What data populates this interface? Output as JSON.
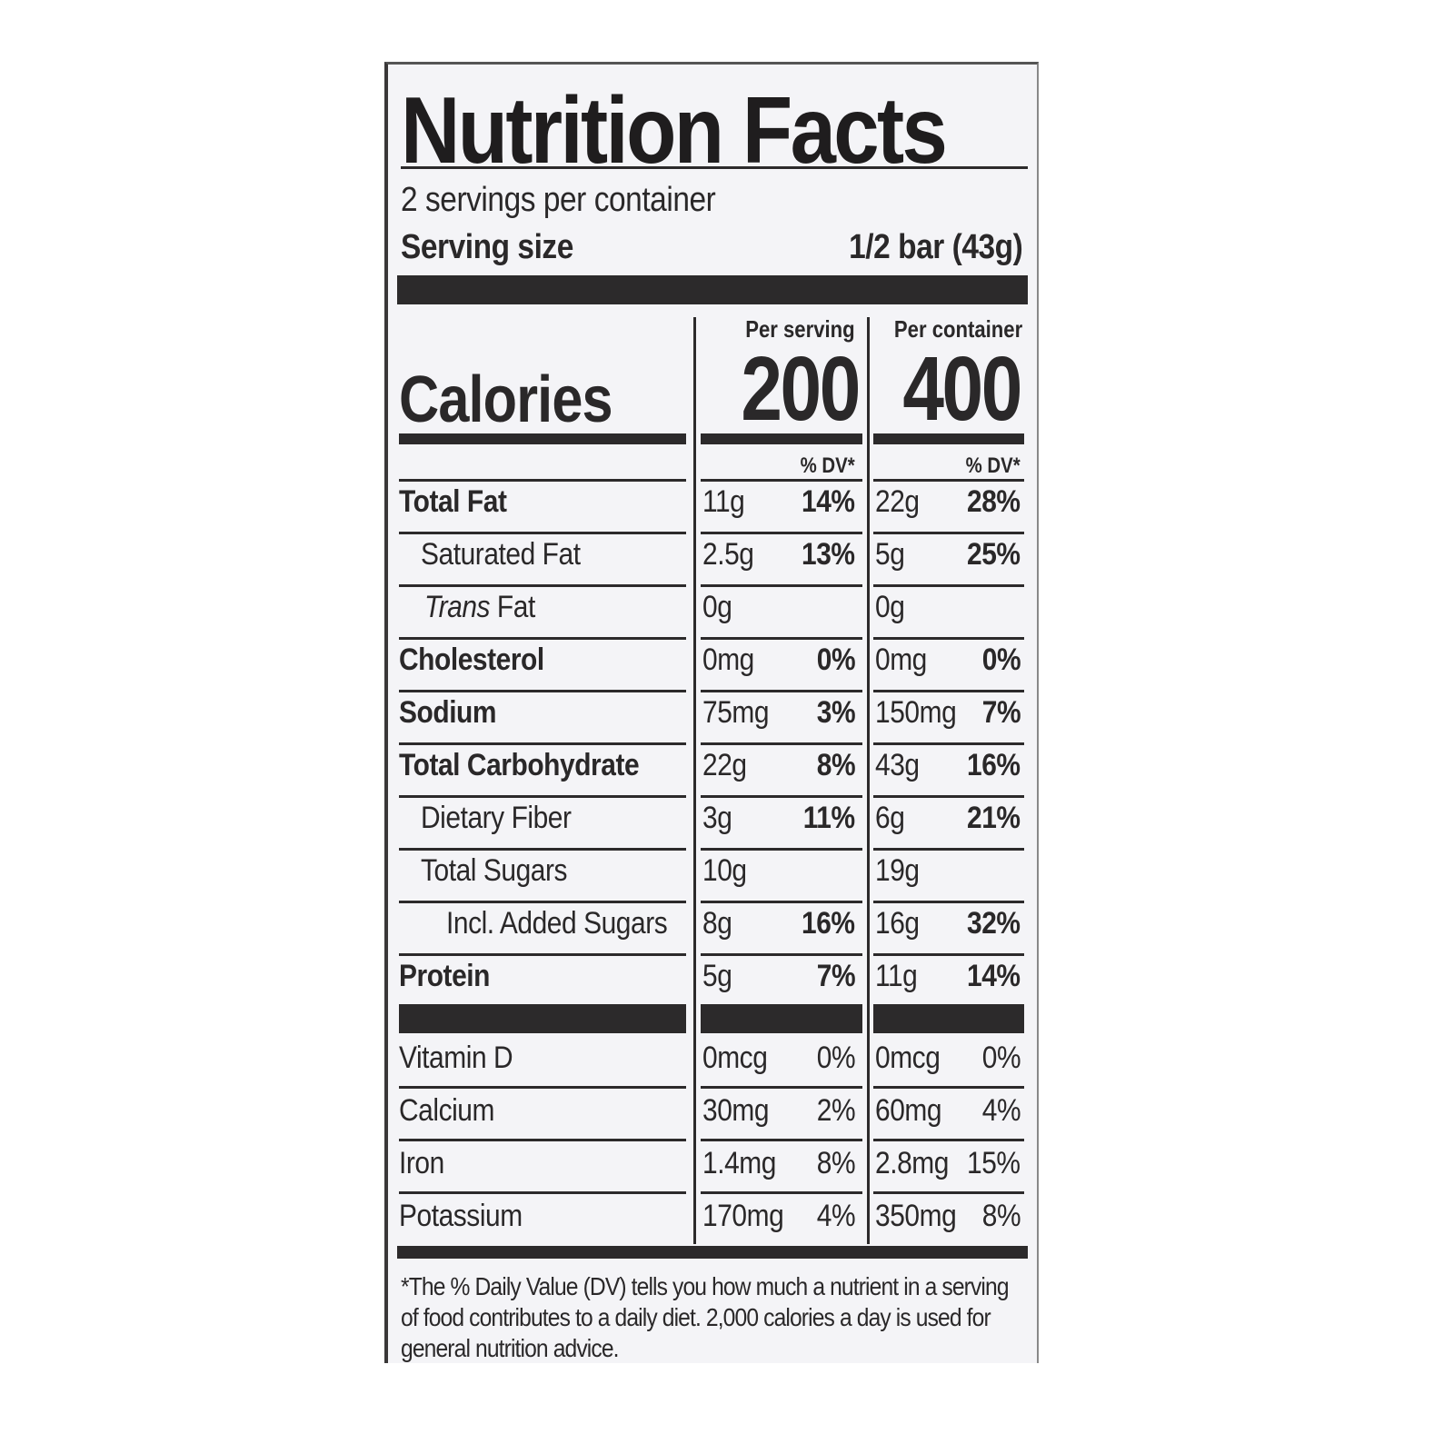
{
  "title": "Nutrition Facts",
  "servings_per_container": "2 servings per container",
  "serving_size_label": "Serving size",
  "serving_size_value": "1/2 bar (43g)",
  "calories_label": "Calories",
  "columns": [
    {
      "header": "Per serving",
      "calories": "200",
      "dv_header": "% DV*"
    },
    {
      "header": "Per container",
      "calories": "400",
      "dv_header": "% DV*"
    }
  ],
  "nutrients": [
    {
      "name": "Total Fat",
      "serving_amount": "11g",
      "serving_dv": "14%",
      "container_amount": "22g",
      "container_dv": "28%"
    },
    {
      "name": "Saturated Fat",
      "serving_amount": "2.5g",
      "serving_dv": "13%",
      "container_amount": "5g",
      "container_dv": "25%"
    },
    {
      "name_italic": "Trans",
      "name": " Fat",
      "serving_amount": "0g",
      "serving_dv": "",
      "container_amount": "0g",
      "container_dv": ""
    },
    {
      "name": "Cholesterol",
      "serving_amount": "0mg",
      "serving_dv": "0%",
      "container_amount": "0mg",
      "container_dv": "0%"
    },
    {
      "name": "Sodium",
      "serving_amount": "75mg",
      "serving_dv": "3%",
      "container_amount": "150mg",
      "container_dv": "7%"
    },
    {
      "name": "Total Carbohydrate",
      "serving_amount": "22g",
      "serving_dv": "8%",
      "container_amount": "43g",
      "container_dv": "16%"
    },
    {
      "name": "Dietary Fiber",
      "serving_amount": "3g",
      "serving_dv": "11%",
      "container_amount": "6g",
      "container_dv": "21%"
    },
    {
      "name": "Total Sugars",
      "serving_amount": "10g",
      "serving_dv": "",
      "container_amount": "19g",
      "container_dv": ""
    },
    {
      "name": "Incl. Added Sugars",
      "serving_amount": "8g",
      "serving_dv": "16%",
      "container_amount": "16g",
      "container_dv": "32%"
    },
    {
      "name": "Protein",
      "serving_amount": "5g",
      "serving_dv": "7%",
      "container_amount": "11g",
      "container_dv": "14%"
    }
  ],
  "vitamins": [
    {
      "name": "Vitamin D",
      "serving_amount": "0mcg",
      "serving_dv": "0%",
      "container_amount": "0mcg",
      "container_dv": "0%"
    },
    {
      "name": "Calcium",
      "serving_amount": "30mg",
      "serving_dv": "2%",
      "container_amount": "60mg",
      "container_dv": "4%"
    },
    {
      "name": "Iron",
      "serving_amount": "1.4mg",
      "serving_dv": "8%",
      "container_amount": "2.8mg",
      "container_dv": "15%"
    },
    {
      "name": "Potassium",
      "serving_amount": "170mg",
      "serving_dv": "4%",
      "container_amount": "350mg",
      "container_dv": "8%"
    }
  ],
  "footnote": "*The % Daily Value (DV) tells you how much a nutrient in a serving of food contributes to a daily diet. 2,000 calories a day is used for general nutrition advice."
}
